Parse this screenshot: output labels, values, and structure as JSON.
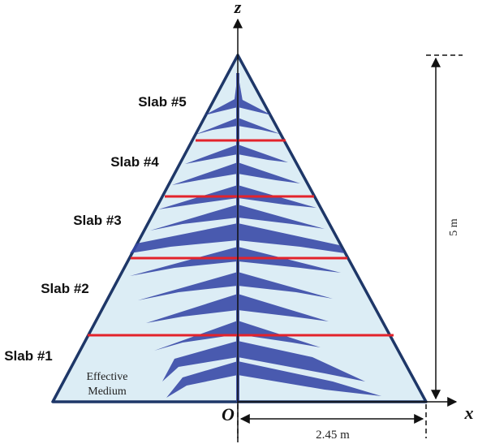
{
  "axes": {
    "z": "z",
    "x": "x",
    "origin": "O"
  },
  "slabs": [
    "Slab #1",
    "Slab #2",
    "Slab #3",
    "Slab #4",
    "Slab #5"
  ],
  "medium_label": [
    "Effective",
    "Medium"
  ],
  "dimensions": {
    "height": "5 m",
    "half_base": "2.45 m"
  }
}
